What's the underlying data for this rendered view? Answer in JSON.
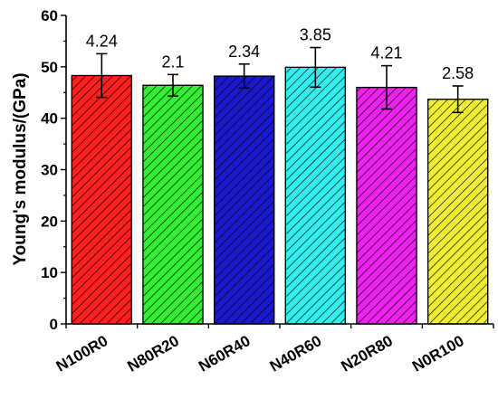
{
  "chart_data": {
    "type": "bar",
    "title": "",
    "xlabel": "",
    "ylabel": "Young's modulus/(GPa)",
    "ylim": [
      0,
      60
    ],
    "yticks": [
      0,
      10,
      20,
      30,
      40,
      50,
      60
    ],
    "categories": [
      "N100R0",
      "N80R20",
      "N60R40",
      "N40R60",
      "N20R80",
      "N0R100"
    ],
    "values": [
      48.3,
      46.4,
      48.2,
      49.9,
      46.0,
      43.7
    ],
    "errors": [
      4.24,
      2.1,
      2.34,
      3.85,
      4.21,
      2.58
    ],
    "data_labels": [
      "4.24",
      "2.1",
      "2.34",
      "3.85",
      "4.21",
      "2.58"
    ],
    "colors": [
      "#ff2020",
      "#33ee33",
      "#1a1acc",
      "#33eeee",
      "#ee22ee",
      "#eeee33"
    ],
    "hatch": "diagonal",
    "grid": false,
    "legend": "none"
  }
}
